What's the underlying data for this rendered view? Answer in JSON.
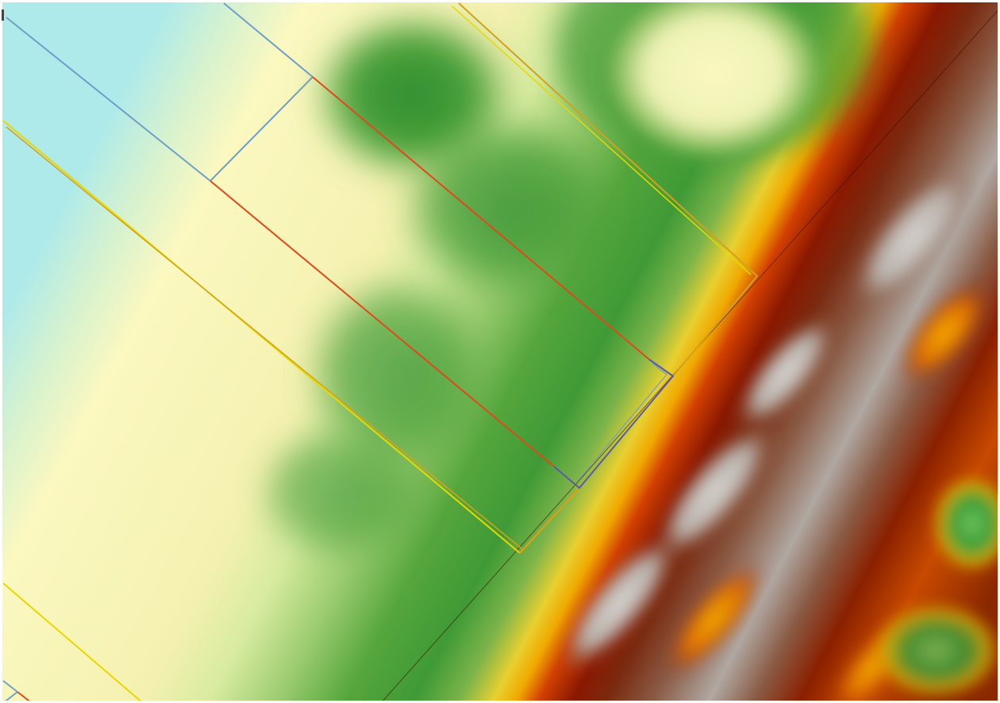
{
  "map": {
    "view": "elevation-raster-with-parcel-outlines",
    "colors": {
      "water": "#aeeaea",
      "lowland": "#fbf8c0",
      "light_green": "#c8e48c",
      "green": "#59a83e",
      "dark_green": "#2f8f31",
      "yellow_orange": "#f0b000",
      "red": "#c42a00",
      "dark_red": "#7a1600",
      "brown": "#7a4b34",
      "grey": "#b8b4b0",
      "parcel_yellow": "#e8d800",
      "parcel_gold": "#d2a21c",
      "parcel_orange_red": "#e0491a",
      "parcel_blue": "#6f9fc8",
      "parcel_purple": "#5a5aa8"
    },
    "legend": null
  }
}
